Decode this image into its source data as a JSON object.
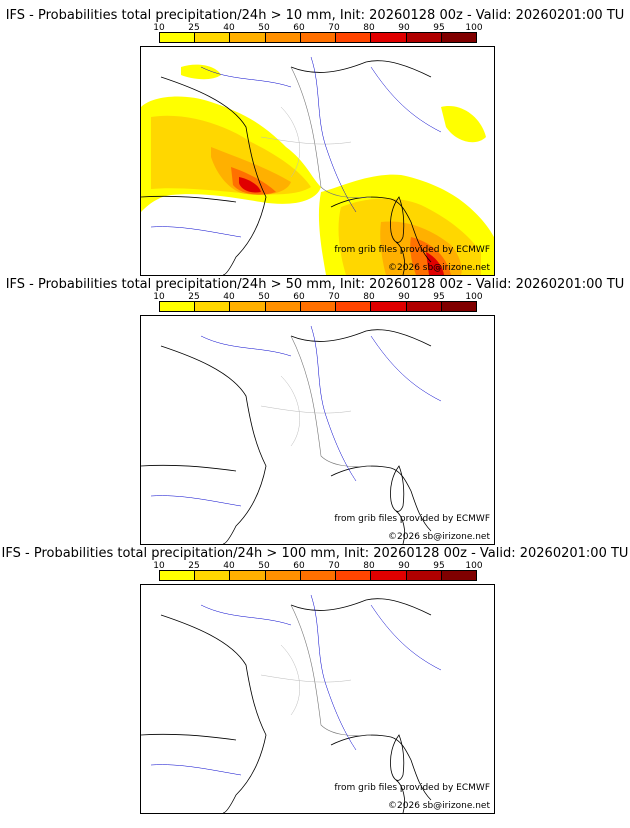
{
  "colorbar": {
    "labels": [
      "10",
      "25",
      "40",
      "50",
      "60",
      "70",
      "80",
      "90",
      "95",
      "100"
    ],
    "colors": [
      "#ffff00",
      "#ffd700",
      "#ffb000",
      "#ff9000",
      "#ff7000",
      "#ff4500",
      "#e00000",
      "#b00000",
      "#800000",
      "#500000"
    ]
  },
  "panels": [
    {
      "title": "IFS - Probabilities total precipitation/24h > 10 mm, Init: 20260128 00z - Valid: 20260201:00 TU",
      "source_credit": "from grib files provided by ECMWF",
      "copyright": "©2026 sb@irizone.net"
    },
    {
      "title": "IFS - Probabilities total precipitation/24h > 50 mm, Init: 20260128 00z - Valid: 20260201:00 TU",
      "source_credit": "from grib files provided by ECMWF",
      "copyright": "©2026 sb@irizone.net"
    },
    {
      "title": "IFS - Probabilities total precipitation/24h > 100 mm, Init: 20260128 00z - Valid: 20260201:00 TU",
      "source_credit": "from grib files provided by ECMWF",
      "copyright": "©2026 sb@irizone.net"
    }
  ]
}
